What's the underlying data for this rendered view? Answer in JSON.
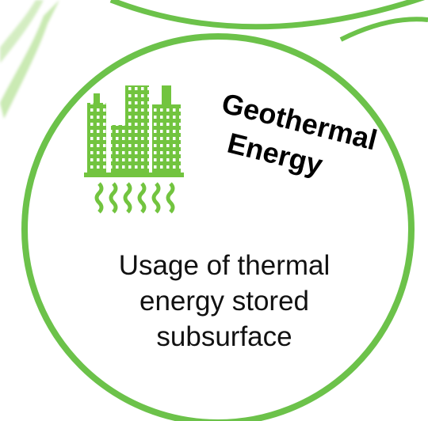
{
  "title_lines": [
    "Geothermal",
    "Energy"
  ],
  "description_lines": [
    "Usage of thermal",
    "energy stored",
    "subsurface"
  ]
}
